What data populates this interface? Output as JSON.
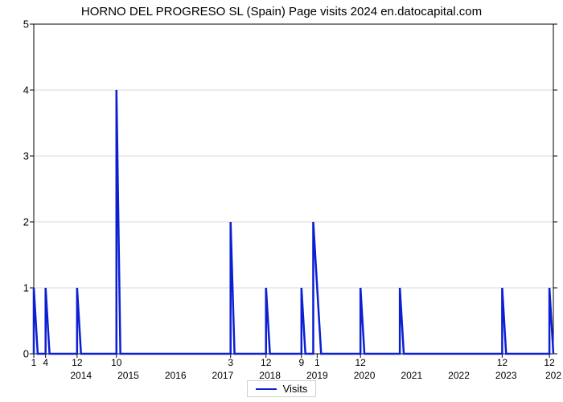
{
  "chart": {
    "type": "line",
    "title": "HORNO DEL PROGRESO SL (Spain) Page visits 2024 en.datocapital.com",
    "title_fontsize": 15,
    "background_color": "#ffffff",
    "axis_color": "#000000",
    "grid_color": "#d9d9d9",
    "tick_label_fontsize": 13,
    "xtick_fontsize": 12,
    "y": {
      "min": 0,
      "max": 5,
      "ticks": [
        0,
        1,
        2,
        3,
        4,
        5
      ]
    },
    "x": {
      "min": 0,
      "max": 132,
      "minor_ticks": [
        {
          "pos": 0,
          "label": "1"
        },
        {
          "pos": 3,
          "label": "4"
        },
        {
          "pos": 11,
          "label": "12"
        },
        {
          "pos": 21,
          "label": "10"
        },
        {
          "pos": 50,
          "label": "3"
        },
        {
          "pos": 59,
          "label": "12"
        },
        {
          "pos": 68,
          "label": "9"
        },
        {
          "pos": 72,
          "label": "1"
        },
        {
          "pos": 83,
          "label": "12"
        },
        {
          "pos": 119,
          "label": "12"
        },
        {
          "pos": 131,
          "label": "12"
        }
      ],
      "major_ticks": [
        {
          "pos": 12,
          "label": "2014"
        },
        {
          "pos": 24,
          "label": "2015"
        },
        {
          "pos": 36,
          "label": "2016"
        },
        {
          "pos": 48,
          "label": "2017"
        },
        {
          "pos": 60,
          "label": "2018"
        },
        {
          "pos": 72,
          "label": "2019"
        },
        {
          "pos": 84,
          "label": "2020"
        },
        {
          "pos": 96,
          "label": "2021"
        },
        {
          "pos": 108,
          "label": "2022"
        },
        {
          "pos": 120,
          "label": "2023"
        },
        {
          "pos": 132,
          "label": "202"
        }
      ]
    },
    "series": {
      "label": "Visits",
      "color": "#0b1fd3",
      "line_width": 2.5,
      "points": [
        {
          "x": 0,
          "y": 1
        },
        {
          "x": 1,
          "y": 0
        },
        {
          "x": 3,
          "y": 1
        },
        {
          "x": 4,
          "y": 0
        },
        {
          "x": 11,
          "y": 1
        },
        {
          "x": 12,
          "y": 0
        },
        {
          "x": 21,
          "y": 4
        },
        {
          "x": 22,
          "y": 0
        },
        {
          "x": 50,
          "y": 2
        },
        {
          "x": 51,
          "y": 0
        },
        {
          "x": 59,
          "y": 1
        },
        {
          "x": 60,
          "y": 0
        },
        {
          "x": 68,
          "y": 1
        },
        {
          "x": 69,
          "y": 0
        },
        {
          "x": 71,
          "y": 2
        },
        {
          "x": 72,
          "y": 1
        },
        {
          "x": 73,
          "y": 0
        },
        {
          "x": 83,
          "y": 1
        },
        {
          "x": 84,
          "y": 0
        },
        {
          "x": 93,
          "y": 1
        },
        {
          "x": 94,
          "y": 0
        },
        {
          "x": 119,
          "y": 1
        },
        {
          "x": 120,
          "y": 0
        },
        {
          "x": 131,
          "y": 1
        },
        {
          "x": 132,
          "y": 0
        }
      ]
    },
    "legend": {
      "border_color": "#d0d0d0",
      "text_color": "#000000",
      "fontsize": 13
    }
  }
}
